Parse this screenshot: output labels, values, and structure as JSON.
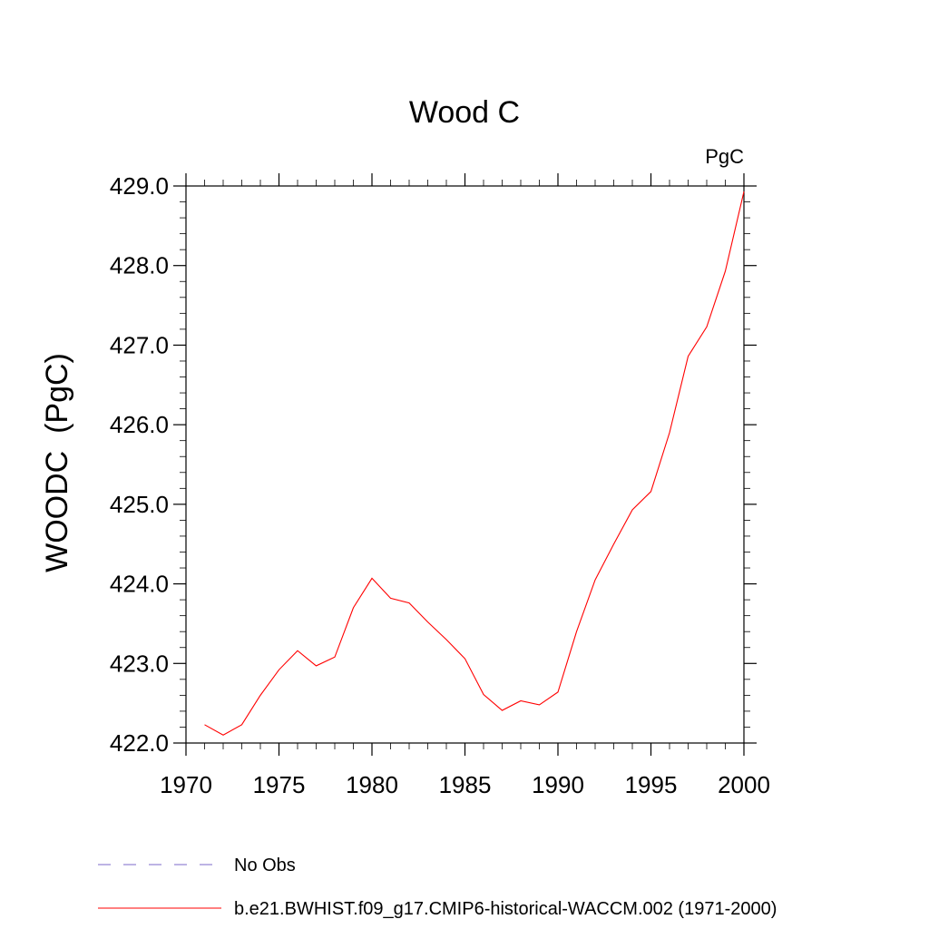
{
  "chart_data": {
    "type": "line",
    "title": "Wood C",
    "units_label": "PgC",
    "xlabel": "",
    "ylabel": "WOODC  (PgC)",
    "xlim": [
      1970,
      2000
    ],
    "ylim": [
      422.0,
      429.0
    ],
    "x_ticks": [
      1970,
      1975,
      1980,
      1985,
      1990,
      1995,
      2000
    ],
    "y_ticks": [
      "422.0",
      "423.0",
      "424.0",
      "425.0",
      "426.0",
      "427.0",
      "428.0",
      "429.0"
    ],
    "series": [
      {
        "name": "b.e21.BWHIST.f09_g17.CMIP6-historical-WACCM.002 (1971-2000)",
        "color": "#ff0000",
        "style": "solid",
        "x": [
          1971,
          1972,
          1973,
          1974,
          1975,
          1976,
          1977,
          1978,
          1979,
          1980,
          1981,
          1982,
          1983,
          1984,
          1985,
          1986,
          1987,
          1988,
          1989,
          1990,
          1991,
          1992,
          1993,
          1994,
          1995,
          1996,
          1997,
          1998,
          1999,
          2000
        ],
        "values": [
          422.23,
          422.1,
          422.23,
          422.6,
          422.92,
          423.16,
          422.97,
          423.08,
          423.7,
          424.07,
          423.82,
          423.76,
          423.52,
          423.3,
          423.06,
          422.61,
          422.41,
          422.53,
          422.48,
          422.64,
          423.4,
          424.05,
          424.5,
          424.93,
          425.16,
          425.9,
          426.86,
          427.23,
          427.93,
          428.93
        ]
      }
    ],
    "legend": [
      {
        "label": "No Obs",
        "color": "#7b68c8",
        "style": "dashed"
      },
      {
        "label": "b.e21.BWHIST.f09_g17.CMIP6-historical-WACCM.002 (1971-2000)",
        "color": "#ff0000",
        "style": "solid"
      }
    ],
    "legend_position": "bottom-left"
  }
}
